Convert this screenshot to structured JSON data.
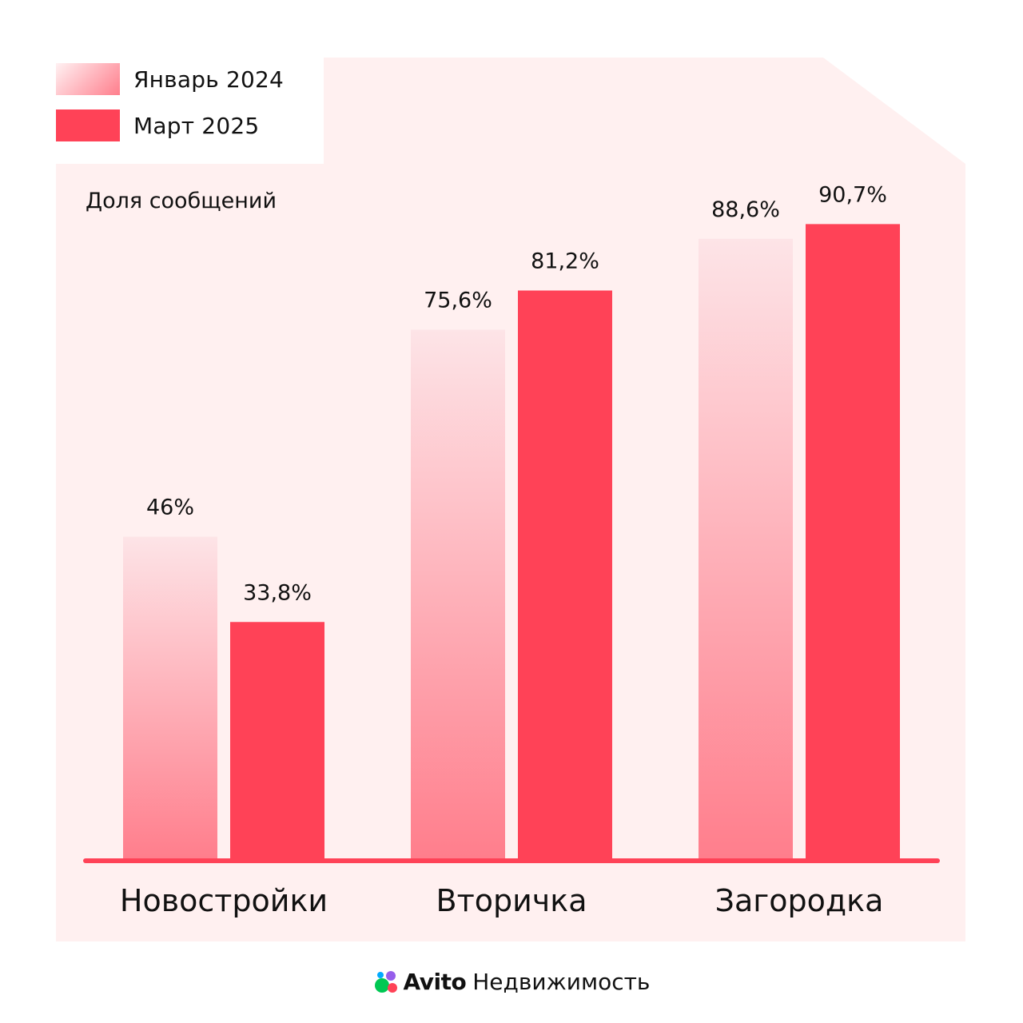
{
  "legend": {
    "items": [
      {
        "label": "Январь 2024",
        "style": "gradient"
      },
      {
        "label": "Март 2025",
        "style": "solid"
      }
    ]
  },
  "y_caption": "Доля сообщений",
  "colors": {
    "panel": "#fff0f0",
    "solid": "#ff4257",
    "gradient_top": "#fde8ea",
    "gradient_bottom": "#ff7e8c",
    "axis": "#ff4257",
    "text": "#111111"
  },
  "chart_data": {
    "type": "bar",
    "categories": [
      "Новостройки",
      "Вторичка",
      "Загородка"
    ],
    "series": [
      {
        "name": "Январь 2024",
        "values": [
          46,
          75.6,
          88.6
        ],
        "labels": [
          "46%",
          "75,6%",
          "88,6%"
        ]
      },
      {
        "name": "Март 2025",
        "values": [
          33.8,
          81.2,
          90.7
        ],
        "labels": [
          "33,8%",
          "81,2%",
          "90,7%"
        ]
      }
    ],
    "ylabel": "Доля сообщений",
    "ylim": [
      0,
      100
    ],
    "grid": false,
    "legend": "top-left"
  },
  "footer": {
    "logo_icon": "avito-dots-icon",
    "brand": "Avito",
    "product": "Недвижимость"
  }
}
